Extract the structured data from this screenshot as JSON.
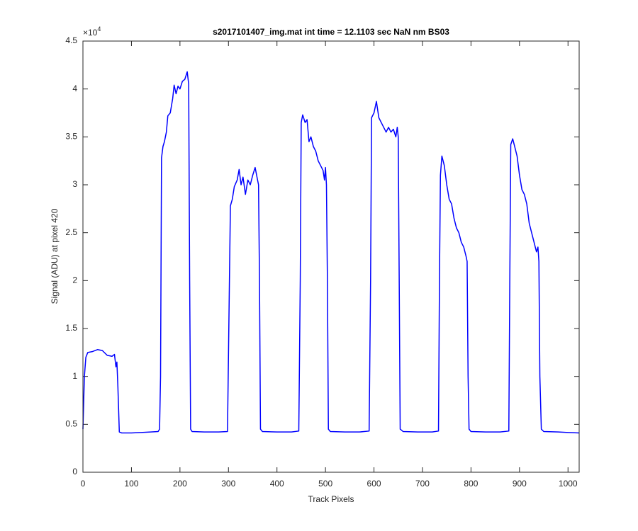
{
  "chart_data": {
    "type": "line",
    "title": "s2017101407_img.mat int time = 12.1103 sec  NaN nm BS03",
    "x_label": "Track Pixels",
    "y_label": "Signal (ADU) at pixel 420",
    "y_multiplier": {
      "base": "×10",
      "exponent": "4"
    },
    "xlim": [
      0,
      1023
    ],
    "ylim": [
      0,
      45000
    ],
    "xticks": [
      0,
      100,
      200,
      300,
      400,
      500,
      600,
      700,
      800,
      900,
      1000
    ],
    "yticks": [
      0,
      {
        "value": 5000,
        "label": "0.5"
      },
      {
        "value": 10000,
        "label": "1"
      },
      {
        "value": 15000,
        "label": "1.5"
      },
      {
        "value": 20000,
        "label": "2"
      },
      {
        "value": 25000,
        "label": "2.5"
      },
      {
        "value": 30000,
        "label": "3"
      },
      {
        "value": 35000,
        "label": "3.5"
      },
      {
        "value": 40000,
        "label": "4"
      },
      {
        "value": 45000,
        "label": "4.5"
      }
    ],
    "grid": false,
    "series": [
      {
        "color": "#0000ff",
        "x": [
          0,
          3,
          6,
          10,
          20,
          30,
          40,
          50,
          60,
          65,
          68,
          70,
          72,
          75,
          80,
          100,
          120,
          140,
          155,
          158,
          160,
          162,
          165,
          168,
          172,
          175,
          180,
          185,
          188,
          192,
          196,
          200,
          205,
          210,
          215,
          218,
          220,
          222,
          225,
          250,
          280,
          298,
          302,
          304,
          308,
          312,
          318,
          322,
          326,
          330,
          335,
          340,
          345,
          350,
          355,
          360,
          362,
          364,
          366,
          370,
          400,
          430,
          445,
          448,
          450,
          453,
          458,
          462,
          466,
          470,
          475,
          480,
          485,
          490,
          495,
          498,
          500,
          502,
          504,
          506,
          510,
          540,
          570,
          590,
          593,
          595,
          600,
          605,
          610,
          615,
          620,
          625,
          630,
          635,
          640,
          645,
          648,
          650,
          652,
          654,
          660,
          690,
          720,
          733,
          735,
          737,
          740,
          745,
          750,
          755,
          760,
          765,
          770,
          775,
          780,
          785,
          790,
          792,
          794,
          796,
          800,
          830,
          860,
          878,
          880,
          882,
          886,
          890,
          895,
          900,
          905,
          910,
          915,
          920,
          925,
          930,
          935,
          938,
          940,
          942,
          945,
          950,
          980,
          1000,
          1023
        ],
        "values": [
          4500,
          10000,
          12000,
          12500,
          12600,
          12800,
          12700,
          12200,
          12100,
          12300,
          11000,
          11500,
          9000,
          4200,
          4100,
          4100,
          4150,
          4200,
          4250,
          4500,
          10000,
          32800,
          34000,
          34500,
          35500,
          37200,
          37500,
          39000,
          40400,
          39500,
          40300,
          40000,
          40800,
          41000,
          41800,
          40500,
          20000,
          4500,
          4250,
          4200,
          4200,
          4250,
          20000,
          27800,
          28500,
          29800,
          30500,
          31600,
          30000,
          30800,
          29000,
          30500,
          30000,
          31000,
          31800,
          30500,
          30000,
          20000,
          4500,
          4250,
          4200,
          4200,
          4300,
          20000,
          36500,
          37300,
          36500,
          36800,
          34500,
          35000,
          34000,
          33500,
          32500,
          32000,
          31500,
          30500,
          31800,
          30000,
          20000,
          4500,
          4250,
          4200,
          4200,
          4300,
          20000,
          37000,
          37500,
          38700,
          37000,
          36500,
          36000,
          35500,
          36000,
          35500,
          35800,
          35000,
          36000,
          35000,
          20000,
          4500,
          4250,
          4200,
          4200,
          4300,
          20000,
          31000,
          33000,
          32000,
          30000,
          28500,
          28000,
          26500,
          25500,
          25000,
          24000,
          23500,
          22500,
          22000,
          10000,
          4500,
          4250,
          4200,
          4200,
          4300,
          20000,
          34200,
          34800,
          34000,
          33000,
          31000,
          29500,
          29000,
          28000,
          26000,
          25000,
          24000,
          23000,
          23500,
          22000,
          10000,
          4500,
          4250,
          4200,
          4150,
          4100
        ]
      }
    ]
  }
}
